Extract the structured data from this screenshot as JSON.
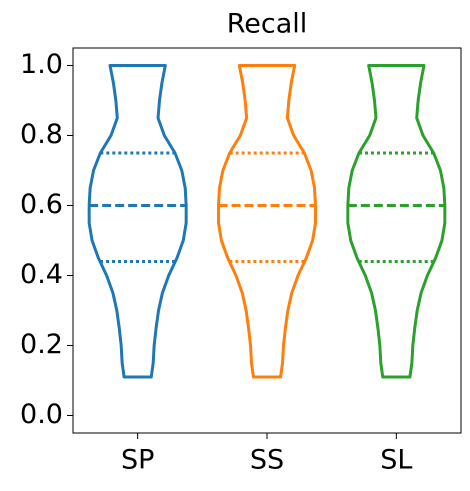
{
  "chart_data": {
    "type": "violin",
    "title": "Recall",
    "categories": [
      "SP",
      "SS",
      "SL"
    ],
    "xlim": [
      0.5,
      3.5
    ],
    "ylim": [
      -0.05,
      1.05
    ],
    "yticks": [
      {
        "value": 0,
        "label": "0.0"
      },
      0.2,
      0.4,
      0.6,
      0.8,
      {
        "value": 1,
        "label": "1.0"
      }
    ],
    "width": 0.75,
    "density_y": [
      1,
      0.95,
      0.9,
      0.85,
      0.8,
      0.75,
      0.7,
      0.65,
      0.6,
      0.55,
      0.5,
      0.45,
      0.4,
      0.35,
      0.3,
      0.25,
      0.2,
      0.15,
      0.11
    ],
    "violins": [
      {
        "color": "#1f77b4",
        "min": 0.11,
        "max": 1,
        "median": 0.6,
        "q1": 0.44,
        "q3": 0.75,
        "density": [
          0.57,
          0.5,
          0.45,
          0.42,
          0.55,
          0.77,
          0.91,
          0.98,
          1,
          1,
          0.94,
          0.81,
          0.64,
          0.51,
          0.43,
          0.38,
          0.34,
          0.32,
          0.28
        ]
      },
      {
        "color": "#ff7f0e",
        "min": 0.11,
        "max": 1,
        "median": 0.6,
        "q1": 0.44,
        "q3": 0.75,
        "density": [
          0.57,
          0.5,
          0.45,
          0.42,
          0.55,
          0.77,
          0.91,
          0.98,
          1,
          1,
          0.94,
          0.81,
          0.64,
          0.51,
          0.43,
          0.38,
          0.34,
          0.32,
          0.28
        ]
      },
      {
        "color": "#2ca02c",
        "min": 0.11,
        "max": 1,
        "median": 0.6,
        "q1": 0.44,
        "q3": 0.75,
        "density": [
          0.57,
          0.5,
          0.45,
          0.42,
          0.55,
          0.77,
          0.91,
          0.98,
          1,
          1,
          0.94,
          0.81,
          0.64,
          0.51,
          0.43,
          0.38,
          0.34,
          0.32,
          0.28
        ]
      }
    ]
  }
}
